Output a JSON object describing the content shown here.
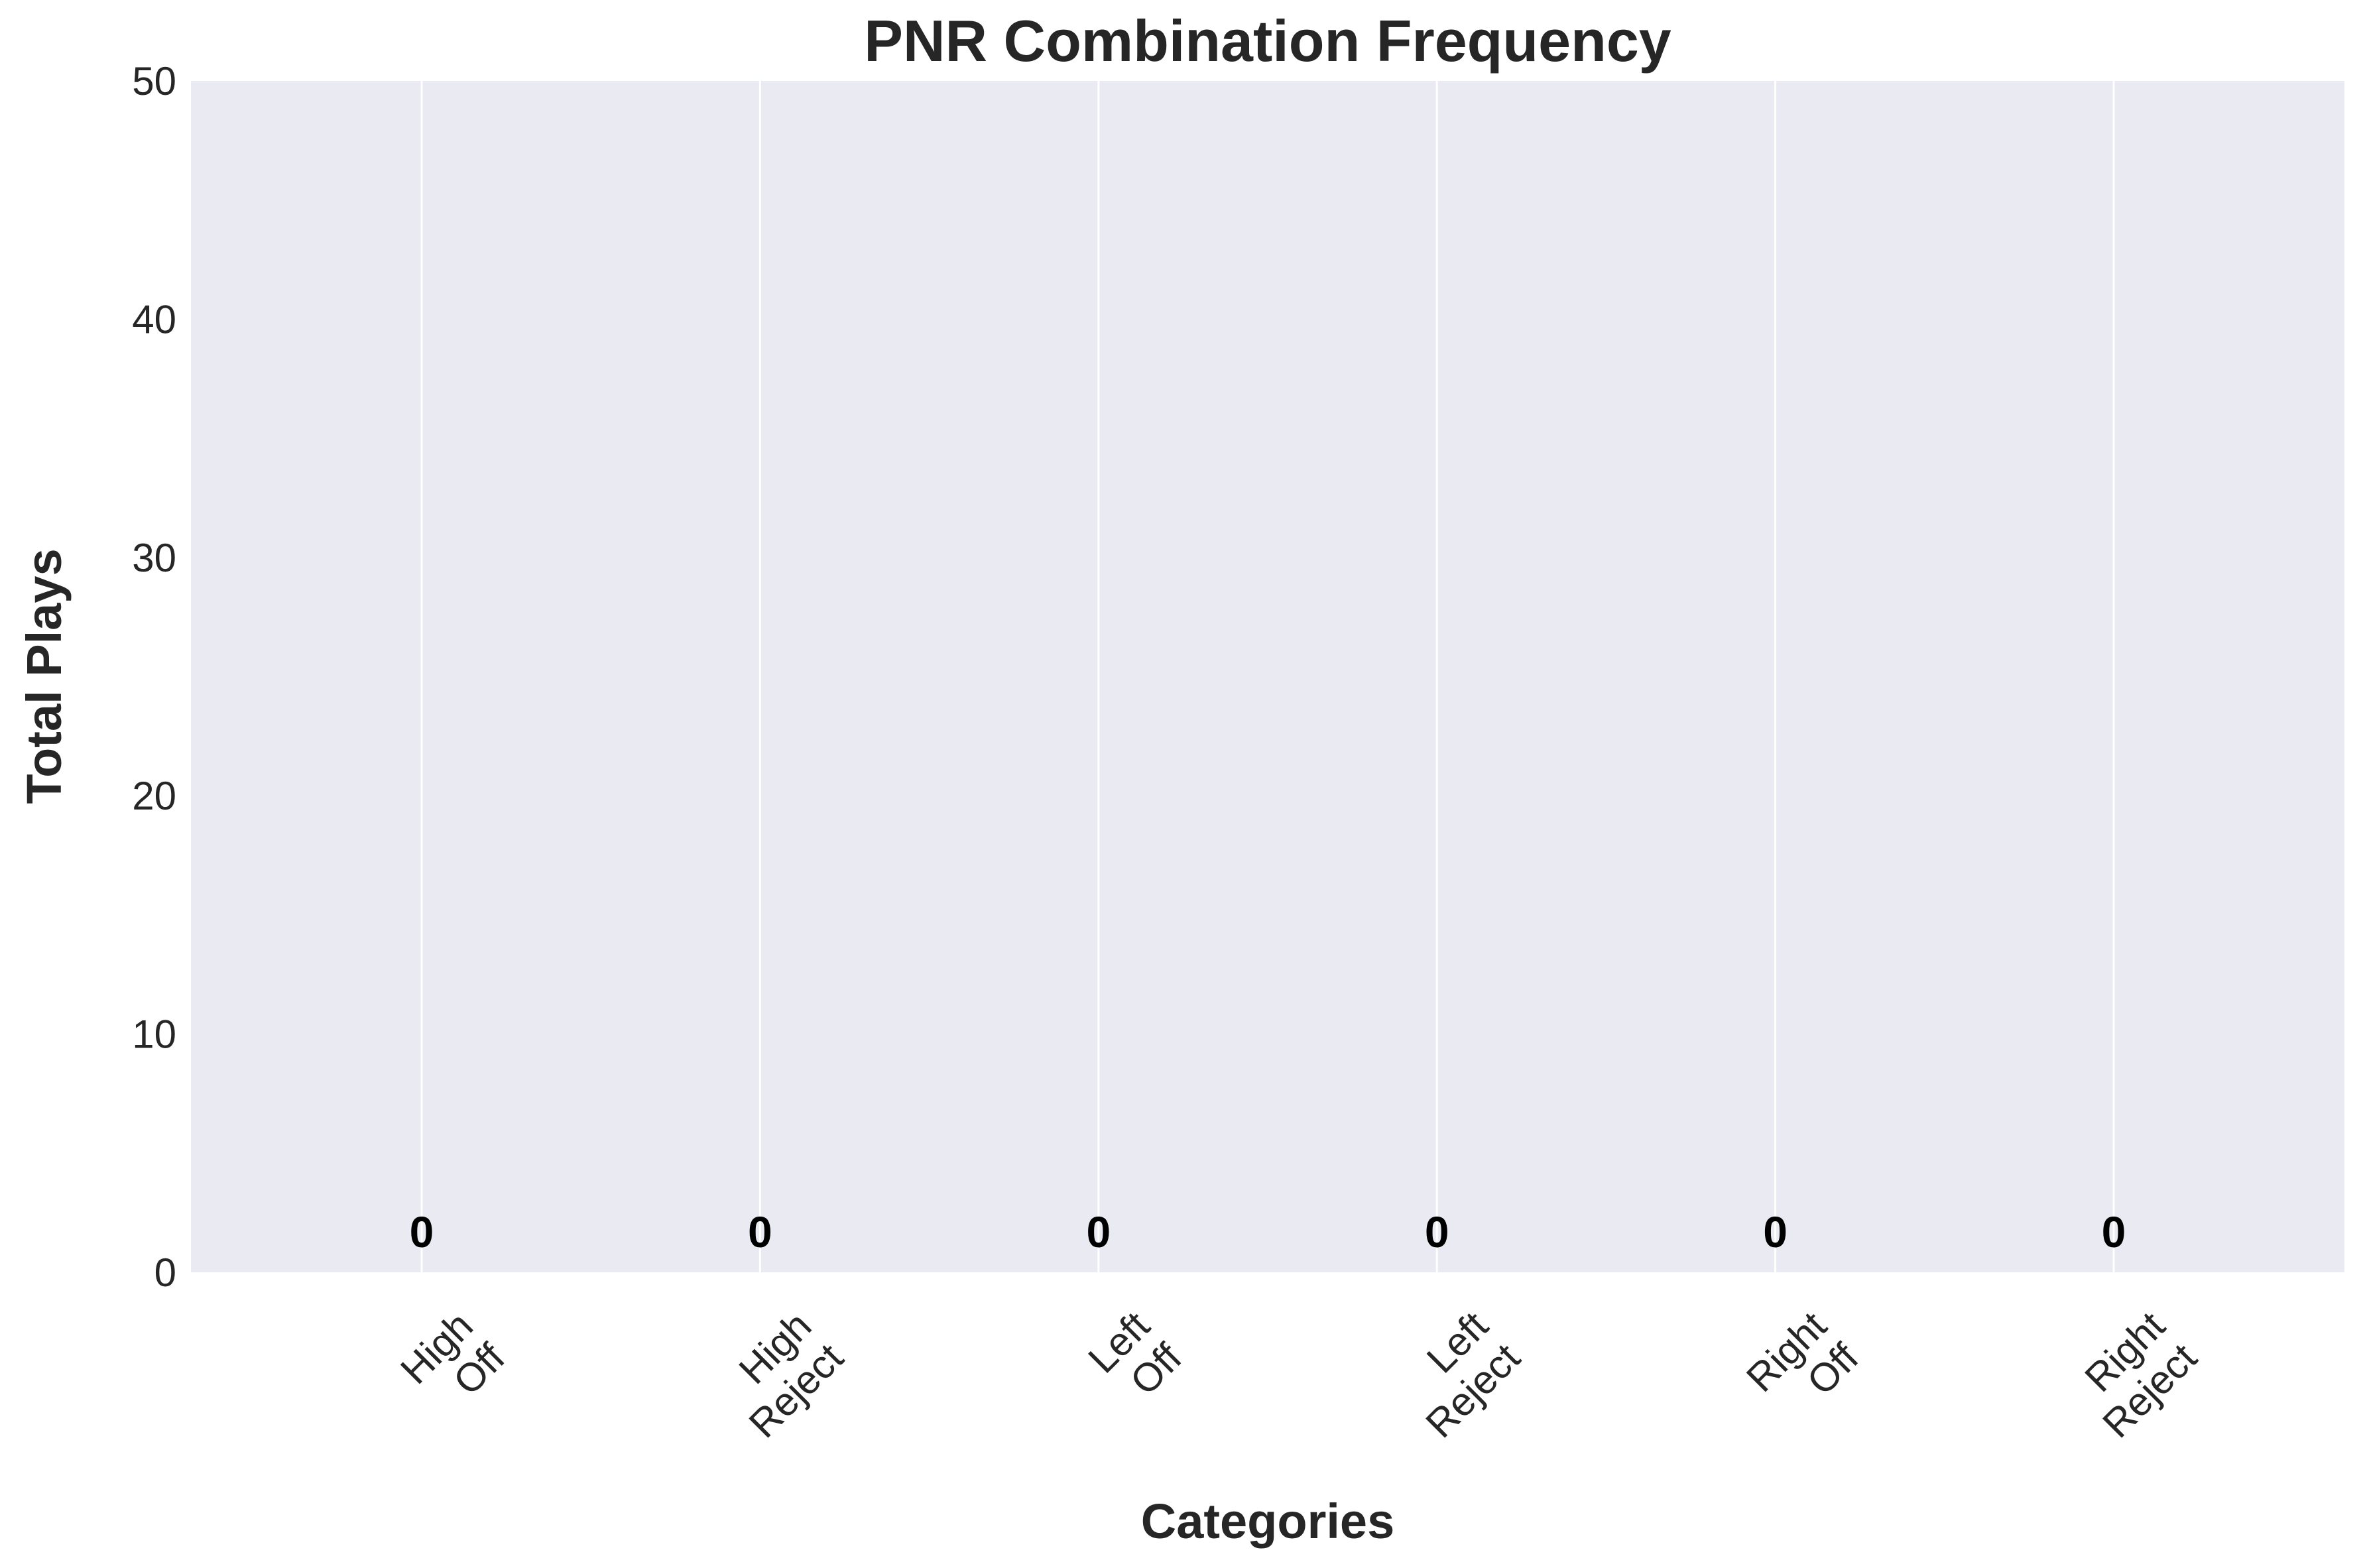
{
  "colors": {
    "plot_background": "#eaeaf2",
    "grid": "#ffffff",
    "bar_edge": "#000000",
    "text": "#262626"
  },
  "chart_data": {
    "type": "bar",
    "title": "PNR Combination Frequency",
    "xlabel": "Categories",
    "ylabel": "Total Plays",
    "categories": [
      [
        "High",
        "Off"
      ],
      [
        "High",
        "Reject"
      ],
      [
        "Left",
        "Off"
      ],
      [
        "Left",
        "Reject"
      ],
      [
        "Right",
        "Off"
      ],
      [
        "Right",
        "Reject"
      ]
    ],
    "values": [
      0,
      0,
      0,
      0,
      0,
      0
    ],
    "data_labels": [
      "0",
      "0",
      "0",
      "0",
      "0",
      "0"
    ],
    "ylim": [
      0,
      50
    ],
    "yticks": [
      0,
      10,
      20,
      30,
      40,
      50
    ],
    "grid": "vertical",
    "legend": "none"
  }
}
